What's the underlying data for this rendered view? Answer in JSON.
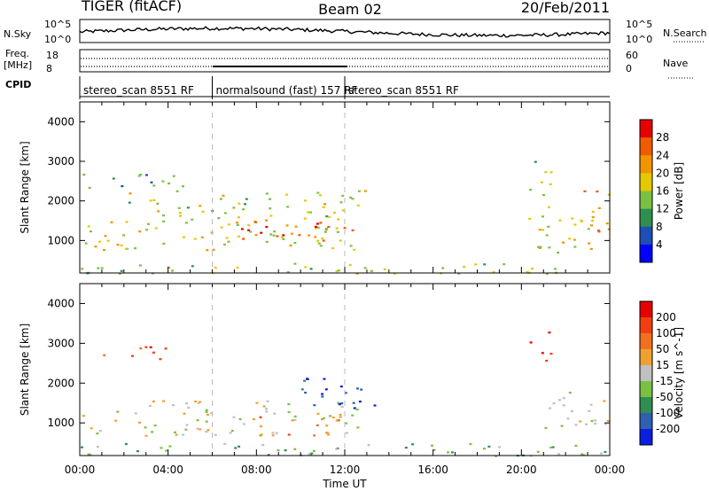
{
  "header": {
    "station": "TIGER (fitACF)",
    "beam": "Beam 02",
    "date": "20/Feb/2011"
  },
  "top_panels": {
    "nsky_label": "N.Sky",
    "nsky_ticks": [
      "10^5",
      "10^0"
    ],
    "nsky_right_ticks": [
      "10^5",
      "10^0"
    ],
    "nsearch_label": "N.Search",
    "freq_label": "Freq.",
    "freq_unit": "[MHz]",
    "freq_ticks": [
      "18",
      "8"
    ],
    "nave_ticks": [
      "60",
      "0"
    ],
    "nave_label": "Nave",
    "cpid_label": "CPID",
    "cpid_segments": [
      {
        "label": "stereo_scan 8551 RF",
        "start_h": 0,
        "end_h": 6
      },
      {
        "label": "normalsound (fast) 157 RF",
        "start_h": 6,
        "end_h": 12
      },
      {
        "label": "stereo_scan 8551 RF",
        "start_h": 12,
        "end_h": 24
      }
    ]
  },
  "chart_data": [
    {
      "type": "heatmap",
      "panel": "power",
      "ylabel": "Slant Range [km]",
      "xlabel": "",
      "xlim_hours": [
        0,
        24
      ],
      "ylim_km": [
        180,
        4500
      ],
      "yticks": [
        "1000",
        "2000",
        "3000",
        "4000"
      ],
      "colorbar_label": "Power [dB]",
      "colorbar_ticks": [
        "4",
        "8",
        "12",
        "16",
        "20",
        "24",
        "28"
      ],
      "colorbar_colors": [
        "#0000ff",
        "#1e4fb8",
        "#2f8f50",
        "#7ac143",
        "#e6c800",
        "#f29400",
        "#f05a00",
        "#e60000"
      ],
      "features": [
        {
          "t0": 0.0,
          "t1": 13.5,
          "r0": 750,
          "r1": 1500,
          "level": 0.55
        },
        {
          "t0": 2.0,
          "t1": 13.0,
          "r0": 1500,
          "r1": 2300,
          "level": 0.5
        },
        {
          "t0": 7.0,
          "t1": 12.5,
          "r0": 900,
          "r1": 1500,
          "level": 0.85
        },
        {
          "t0": 0.0,
          "t1": 5.0,
          "r0": 2300,
          "r1": 2700,
          "level": 0.3
        },
        {
          "t0": 0.0,
          "t1": 24.0,
          "r0": 180,
          "r1": 450,
          "level": 0.5
        },
        {
          "t0": 20.0,
          "t1": 24.0,
          "r0": 700,
          "r1": 1600,
          "level": 0.6
        },
        {
          "t0": 20.3,
          "t1": 21.3,
          "r0": 1500,
          "r1": 3100,
          "level": 0.45
        },
        {
          "t0": 22.5,
          "t1": 24.0,
          "r0": 1200,
          "r1": 2300,
          "level": 0.7
        }
      ]
    },
    {
      "type": "heatmap",
      "panel": "velocity",
      "ylabel": "Slant Range [km]",
      "xlabel": "Time UT",
      "xlim_hours": [
        0,
        24
      ],
      "ylim_km": [
        180,
        4500
      ],
      "yticks": [
        "1000",
        "2000",
        "3000",
        "4000"
      ],
      "xticks": [
        "00:00",
        "04:00",
        "08:00",
        "12:00",
        "16:00",
        "20:00",
        "00:00"
      ],
      "colorbar_label": "Velocity [m s^-1]",
      "colorbar_ticks": [
        "200",
        "100",
        "50",
        "15",
        "-15",
        "-50",
        "-100",
        "-200"
      ],
      "colorbar_colors": [
        "#0a1fe0",
        "#2f5fb0",
        "#2f8f50",
        "#7ac143",
        "#c0c0c0",
        "#f0a030",
        "#f07020",
        "#f04010",
        "#e60000"
      ],
      "features": [
        {
          "t0": 0.0,
          "t1": 13.0,
          "r0": 700,
          "r1": 1600,
          "level": 0.5
        },
        {
          "t0": 10.0,
          "t1": 13.5,
          "r0": 1300,
          "r1": 2200,
          "level": 0.05
        },
        {
          "t0": 8.0,
          "t1": 12.0,
          "r0": 700,
          "r1": 1200,
          "level": 0.75
        },
        {
          "t0": 0.0,
          "t1": 24.0,
          "r0": 180,
          "r1": 500,
          "level": 0.35
        },
        {
          "t0": 1.0,
          "t1": 4.0,
          "r0": 2600,
          "r1": 3000,
          "level": 0.95
        },
        {
          "t0": 20.3,
          "t1": 21.3,
          "r0": 2500,
          "r1": 3300,
          "level": 0.9
        },
        {
          "t0": 21.0,
          "t1": 24.0,
          "r0": 700,
          "r1": 1800,
          "level": 0.5
        }
      ]
    }
  ]
}
